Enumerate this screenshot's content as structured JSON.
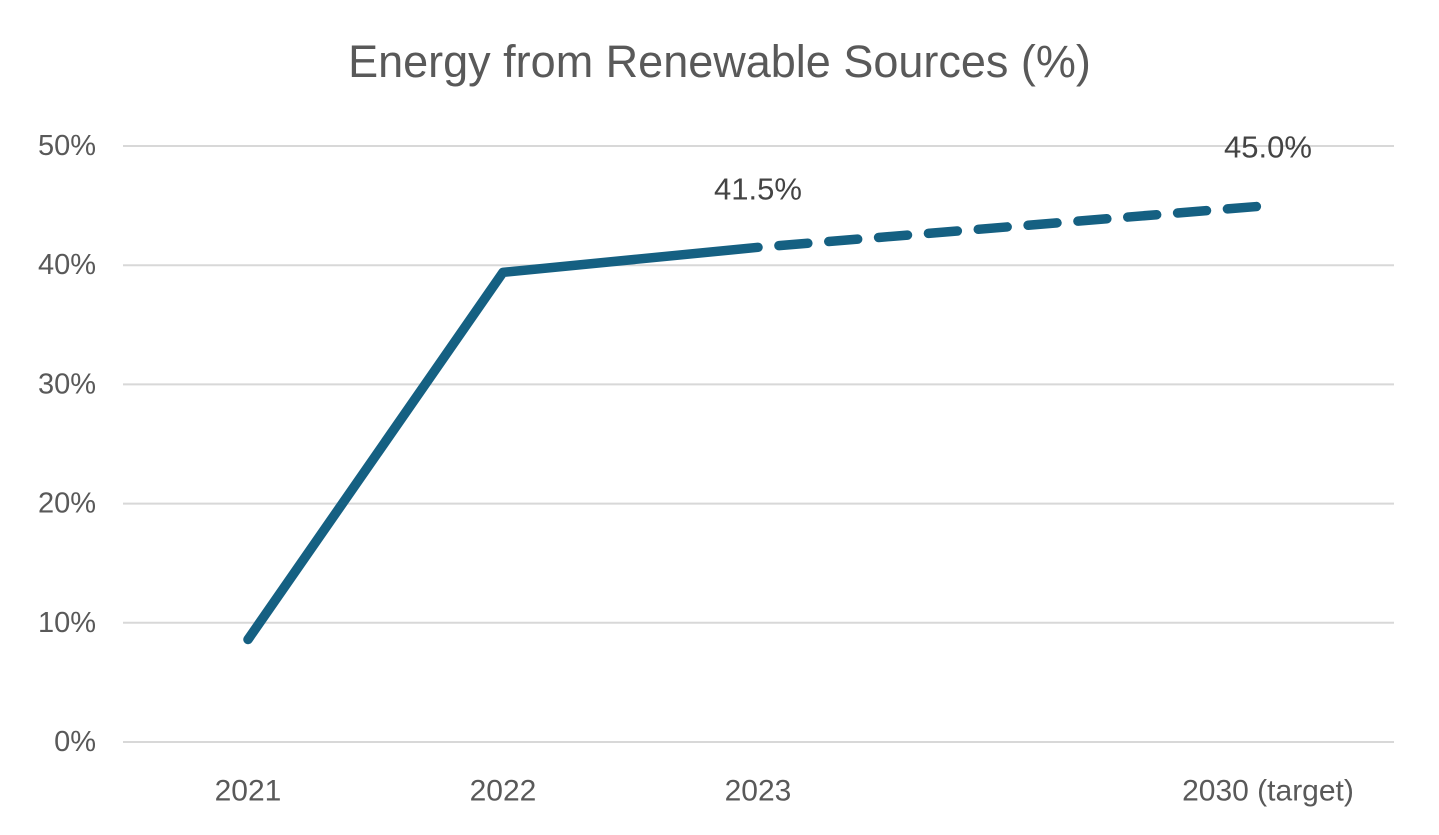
{
  "chart_data": {
    "type": "line",
    "title": "Energy from Renewable Sources (%)",
    "xlabel": "",
    "ylabel": "",
    "categories": [
      "2021",
      "2022",
      "2023",
      "2030 (target)"
    ],
    "series": [
      {
        "name": "Energy from renewable sources (%)",
        "values": [
          8.6,
          39.4,
          41.5,
          45.0
        ],
        "solid_through_index": 2,
        "dashed_from_index": 2,
        "color": "#156082"
      }
    ],
    "data_labels": [
      {
        "point_index": 2,
        "text": "41.5%"
      },
      {
        "point_index": 3,
        "text": "45.0%"
      }
    ],
    "yticks": [
      {
        "value": 0,
        "label": "0%"
      },
      {
        "value": 10,
        "label": "10%"
      },
      {
        "value": 20,
        "label": "20%"
      },
      {
        "value": 30,
        "label": "30%"
      },
      {
        "value": 40,
        "label": "40%"
      },
      {
        "value": 50,
        "label": "50%"
      }
    ],
    "ylim": [
      0,
      50
    ],
    "x_slot_indices": [
      0,
      1,
      2,
      4
    ],
    "grid": "horizontal",
    "legend": "none",
    "colors": {
      "line": "#156082",
      "gridline": "#d8d8d8",
      "axis_text": "#595959",
      "data_label_text": "#444444",
      "title_text": "#595959",
      "background": "#ffffff"
    }
  }
}
